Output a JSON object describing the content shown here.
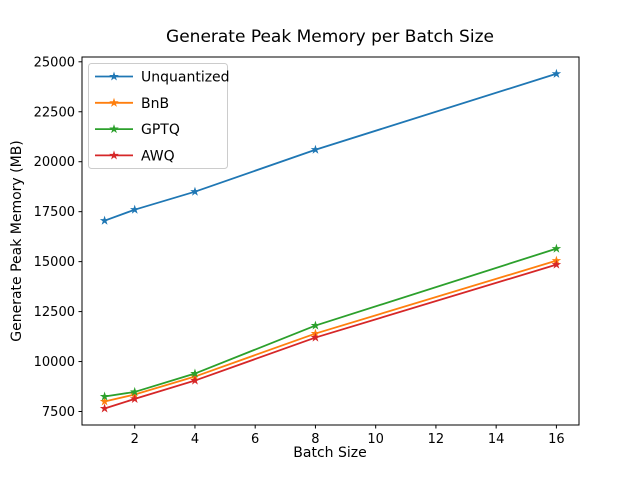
{
  "chart_data": {
    "type": "line",
    "title": "Generate Peak Memory per Batch Size",
    "xlabel": "Batch Size",
    "ylabel": "Generate Peak Memory (MB)",
    "x": [
      1,
      2,
      4,
      8,
      16
    ],
    "series": [
      {
        "name": "Unquantized",
        "color": "#1f77b4",
        "values": [
          17050,
          17600,
          18500,
          20600,
          24400
        ]
      },
      {
        "name": "BnB",
        "color": "#ff7f0e",
        "values": [
          8000,
          8350,
          9250,
          11400,
          15050
        ]
      },
      {
        "name": "GPTQ",
        "color": "#2ca02c",
        "values": [
          8250,
          8480,
          9400,
          11800,
          15650
        ]
      },
      {
        "name": "AWQ",
        "color": "#d62728",
        "values": [
          7650,
          8130,
          9050,
          11200,
          14850
        ]
      }
    ],
    "xticks": [
      2,
      4,
      6,
      8,
      10,
      12,
      14,
      16
    ],
    "yticks": [
      7500,
      10000,
      12500,
      15000,
      17500,
      20000,
      22500,
      25000
    ],
    "xlim": [
      0.25,
      16.75
    ],
    "ylim": [
      6825,
      25240
    ],
    "grid": false,
    "marker": "star",
    "legend_position": "upper-left",
    "legend_border_color": "#cccccc",
    "spine_color": "#000000",
    "background_color": "#ffffff"
  }
}
